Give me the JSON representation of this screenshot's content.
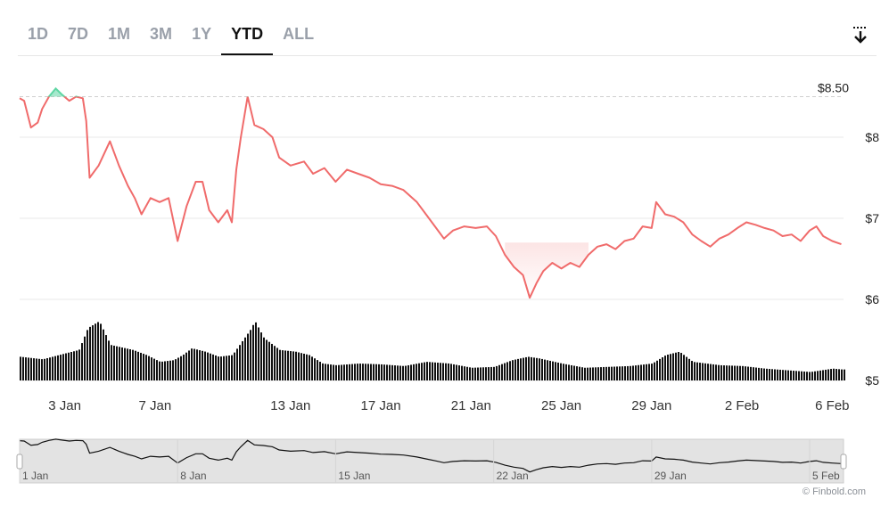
{
  "tabs": [
    {
      "label": "1D",
      "active": false
    },
    {
      "label": "7D",
      "active": false
    },
    {
      "label": "1M",
      "active": false
    },
    {
      "label": "3M",
      "active": false
    },
    {
      "label": "1Y",
      "active": false
    },
    {
      "label": "YTD",
      "active": true
    },
    {
      "label": "ALL",
      "active": false
    }
  ],
  "download_icon": "download-arrow-icon",
  "credit": "© Finbold.com",
  "chart_data": {
    "type": "line",
    "title": "",
    "xlabel": "",
    "ylabel": "",
    "reference_line": {
      "value": 8.5,
      "label": "$8.50",
      "style": "dashed"
    },
    "y_ticks": [
      {
        "value": 5,
        "label": "$5"
      },
      {
        "value": 6,
        "label": "$6"
      },
      {
        "value": 7,
        "label": "$7"
      },
      {
        "value": 8,
        "label": "$8"
      }
    ],
    "ylim": [
      5,
      8.8
    ],
    "x_ticks": [
      {
        "day": 3,
        "label": "3 Jan"
      },
      {
        "day": 7,
        "label": "7 Jan"
      },
      {
        "day": 13,
        "label": "13 Jan"
      },
      {
        "day": 17,
        "label": "17 Jan"
      },
      {
        "day": 21,
        "label": "21 Jan"
      },
      {
        "day": 25,
        "label": "25 Jan"
      },
      {
        "day": 29,
        "label": "29 Jan"
      },
      {
        "day": 33,
        "label": "2 Feb"
      },
      {
        "day": 37,
        "label": "6 Feb"
      }
    ],
    "xlim_days": [
      1,
      37.5
    ],
    "colors": {
      "below": "#f06b6b",
      "above": "#5fd6a4",
      "volume": "#111111",
      "navigator_fill": "#e3e3e3"
    },
    "price_series": {
      "name": "Price",
      "points": [
        [
          1.0,
          8.48
        ],
        [
          1.2,
          8.45
        ],
        [
          1.5,
          8.12
        ],
        [
          1.8,
          8.18
        ],
        [
          2.0,
          8.35
        ],
        [
          2.3,
          8.5
        ],
        [
          2.6,
          8.6
        ],
        [
          2.9,
          8.52
        ],
        [
          3.2,
          8.45
        ],
        [
          3.5,
          8.5
        ],
        [
          3.8,
          8.48
        ],
        [
          3.95,
          8.2
        ],
        [
          4.1,
          7.5
        ],
        [
          4.5,
          7.65
        ],
        [
          5.0,
          7.95
        ],
        [
          5.4,
          7.65
        ],
        [
          5.8,
          7.4
        ],
        [
          6.1,
          7.25
        ],
        [
          6.4,
          7.05
        ],
        [
          6.8,
          7.25
        ],
        [
          7.2,
          7.2
        ],
        [
          7.6,
          7.25
        ],
        [
          8.0,
          6.72
        ],
        [
          8.4,
          7.15
        ],
        [
          8.8,
          7.45
        ],
        [
          9.1,
          7.45
        ],
        [
          9.4,
          7.1
        ],
        [
          9.8,
          6.95
        ],
        [
          10.2,
          7.1
        ],
        [
          10.4,
          6.95
        ],
        [
          10.6,
          7.6
        ],
        [
          10.8,
          8.0
        ],
        [
          11.1,
          8.5
        ],
        [
          11.4,
          8.15
        ],
        [
          11.8,
          8.1
        ],
        [
          12.2,
          8.0
        ],
        [
          12.5,
          7.75
        ],
        [
          13.0,
          7.65
        ],
        [
          13.6,
          7.7
        ],
        [
          14.0,
          7.55
        ],
        [
          14.5,
          7.62
        ],
        [
          15.0,
          7.45
        ],
        [
          15.5,
          7.6
        ],
        [
          16.0,
          7.55
        ],
        [
          16.5,
          7.5
        ],
        [
          17.0,
          7.42
        ],
        [
          17.5,
          7.4
        ],
        [
          18.0,
          7.35
        ],
        [
          18.6,
          7.2
        ],
        [
          19.0,
          7.05
        ],
        [
          19.4,
          6.9
        ],
        [
          19.8,
          6.75
        ],
        [
          20.2,
          6.85
        ],
        [
          20.7,
          6.9
        ],
        [
          21.2,
          6.88
        ],
        [
          21.7,
          6.9
        ],
        [
          22.1,
          6.78
        ],
        [
          22.5,
          6.55
        ],
        [
          22.9,
          6.4
        ],
        [
          23.3,
          6.3
        ],
        [
          23.6,
          6.02
        ],
        [
          23.9,
          6.2
        ],
        [
          24.2,
          6.35
        ],
        [
          24.6,
          6.45
        ],
        [
          25.0,
          6.38
        ],
        [
          25.4,
          6.45
        ],
        [
          25.8,
          6.4
        ],
        [
          26.2,
          6.55
        ],
        [
          26.6,
          6.65
        ],
        [
          27.0,
          6.68
        ],
        [
          27.4,
          6.62
        ],
        [
          27.8,
          6.72
        ],
        [
          28.2,
          6.75
        ],
        [
          28.6,
          6.9
        ],
        [
          29.0,
          6.88
        ],
        [
          29.2,
          7.2
        ],
        [
          29.6,
          7.05
        ],
        [
          30.0,
          7.02
        ],
        [
          30.4,
          6.95
        ],
        [
          30.8,
          6.8
        ],
        [
          31.2,
          6.72
        ],
        [
          31.6,
          6.65
        ],
        [
          32.0,
          6.75
        ],
        [
          32.4,
          6.8
        ],
        [
          32.8,
          6.88
        ],
        [
          33.2,
          6.95
        ],
        [
          33.6,
          6.92
        ],
        [
          34.0,
          6.88
        ],
        [
          34.4,
          6.85
        ],
        [
          34.8,
          6.78
        ],
        [
          35.2,
          6.8
        ],
        [
          35.6,
          6.72
        ],
        [
          36.0,
          6.85
        ],
        [
          36.3,
          6.9
        ],
        [
          36.6,
          6.78
        ],
        [
          37.0,
          6.72
        ],
        [
          37.4,
          6.68
        ]
      ]
    },
    "volume_series": {
      "name": "Volume",
      "points": [
        [
          1.0,
          0.28
        ],
        [
          2.0,
          0.25
        ],
        [
          3.0,
          0.32
        ],
        [
          3.6,
          0.36
        ],
        [
          4.0,
          0.62
        ],
        [
          4.5,
          0.7
        ],
        [
          5.0,
          0.42
        ],
        [
          6.0,
          0.36
        ],
        [
          6.6,
          0.3
        ],
        [
          7.2,
          0.22
        ],
        [
          7.8,
          0.24
        ],
        [
          8.2,
          0.3
        ],
        [
          8.6,
          0.38
        ],
        [
          9.2,
          0.34
        ],
        [
          9.8,
          0.28
        ],
        [
          10.4,
          0.3
        ],
        [
          10.8,
          0.45
        ],
        [
          11.2,
          0.6
        ],
        [
          11.4,
          0.7
        ],
        [
          11.8,
          0.5
        ],
        [
          12.5,
          0.36
        ],
        [
          13.2,
          0.34
        ],
        [
          13.8,
          0.3
        ],
        [
          14.4,
          0.2
        ],
        [
          15.0,
          0.18
        ],
        [
          16.0,
          0.2
        ],
        [
          17.0,
          0.19
        ],
        [
          18.0,
          0.17
        ],
        [
          19.0,
          0.22
        ],
        [
          20.0,
          0.2
        ],
        [
          21.0,
          0.15
        ],
        [
          22.0,
          0.16
        ],
        [
          22.8,
          0.24
        ],
        [
          23.5,
          0.28
        ],
        [
          24.0,
          0.26
        ],
        [
          25.0,
          0.2
        ],
        [
          26.0,
          0.15
        ],
        [
          27.0,
          0.16
        ],
        [
          28.0,
          0.17
        ],
        [
          29.0,
          0.2
        ],
        [
          29.6,
          0.3
        ],
        [
          30.2,
          0.34
        ],
        [
          30.8,
          0.22
        ],
        [
          32.0,
          0.18
        ],
        [
          33.0,
          0.17
        ],
        [
          34.0,
          0.14
        ],
        [
          35.0,
          0.12
        ],
        [
          36.0,
          0.1
        ],
        [
          37.0,
          0.14
        ],
        [
          37.4,
          0.13
        ]
      ]
    },
    "navigator": {
      "labels": [
        {
          "day": 1,
          "label": "1 Jan"
        },
        {
          "day": 8,
          "label": "8 Jan"
        },
        {
          "day": 15,
          "label": "15 Jan"
        },
        {
          "day": 22,
          "label": "22 Jan"
        },
        {
          "day": 29,
          "label": "29 Jan"
        },
        {
          "day": 36,
          "label": "5 Feb"
        }
      ]
    }
  }
}
